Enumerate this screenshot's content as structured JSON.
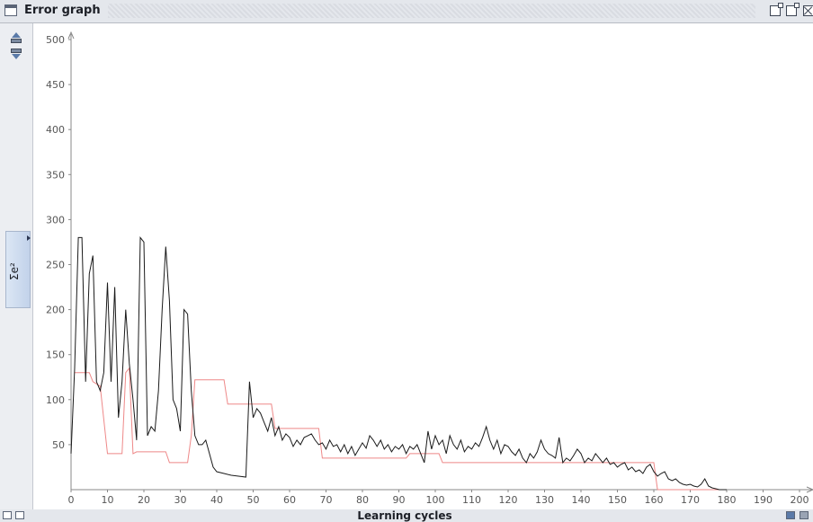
{
  "window": {
    "title": "Error graph"
  },
  "toolbar": {
    "minimize": "minimize",
    "maximize": "maximize",
    "close": "close"
  },
  "y_axis_tab": {
    "label": "Σe²"
  },
  "x_axis": {
    "label": "Learning cycles"
  },
  "chart_data": {
    "type": "line",
    "xlabel": "Learning cycles",
    "ylabel": "Σe²",
    "xlim": [
      0,
      200
    ],
    "ylim": [
      0,
      500
    ],
    "x_ticks": [
      "0",
      "10",
      "20",
      "30",
      "40",
      "50",
      "60",
      "70",
      "80",
      "90",
      "100",
      "110",
      "120",
      "130",
      "140",
      "150",
      "160",
      "170",
      "180",
      "190",
      "200"
    ],
    "y_ticks": [
      "50",
      "100",
      "150",
      "200",
      "250",
      "300",
      "350",
      "400",
      "450",
      "500"
    ],
    "grid": false,
    "series": [
      {
        "color": "#1a1a1a",
        "points": [
          [
            0,
            40
          ],
          [
            1,
            135
          ],
          [
            2,
            280
          ],
          [
            3,
            280
          ],
          [
            4,
            120
          ],
          [
            5,
            240
          ],
          [
            6,
            260
          ],
          [
            7,
            120
          ],
          [
            8,
            110
          ],
          [
            9,
            130
          ],
          [
            10,
            230
          ],
          [
            11,
            120
          ],
          [
            12,
            225
          ],
          [
            13,
            80
          ],
          [
            14,
            120
          ],
          [
            15,
            200
          ],
          [
            16,
            140
          ],
          [
            17,
            100
          ],
          [
            18,
            55
          ],
          [
            19,
            280
          ],
          [
            20,
            275
          ],
          [
            21,
            60
          ],
          [
            22,
            70
          ],
          [
            23,
            65
          ],
          [
            24,
            110
          ],
          [
            25,
            200
          ],
          [
            26,
            270
          ],
          [
            27,
            210
          ],
          [
            28,
            100
          ],
          [
            29,
            90
          ],
          [
            30,
            65
          ],
          [
            31,
            200
          ],
          [
            32,
            195
          ],
          [
            33,
            110
          ],
          [
            34,
            60
          ],
          [
            35,
            50
          ],
          [
            36,
            50
          ],
          [
            37,
            55
          ],
          [
            38,
            40
          ],
          [
            39,
            25
          ],
          [
            40,
            20
          ],
          [
            42,
            18
          ],
          [
            44,
            16
          ],
          [
            46,
            15
          ],
          [
            48,
            14
          ],
          [
            49,
            120
          ],
          [
            50,
            80
          ],
          [
            51,
            90
          ],
          [
            52,
            85
          ],
          [
            53,
            75
          ],
          [
            54,
            65
          ],
          [
            55,
            80
          ],
          [
            56,
            60
          ],
          [
            57,
            70
          ],
          [
            58,
            55
          ],
          [
            59,
            62
          ],
          [
            60,
            58
          ],
          [
            61,
            48
          ],
          [
            62,
            55
          ],
          [
            63,
            50
          ],
          [
            64,
            58
          ],
          [
            65,
            60
          ],
          [
            66,
            62
          ],
          [
            67,
            55
          ],
          [
            68,
            50
          ],
          [
            69,
            52
          ],
          [
            70,
            45
          ],
          [
            71,
            55
          ],
          [
            72,
            48
          ],
          [
            73,
            50
          ],
          [
            74,
            42
          ],
          [
            75,
            50
          ],
          [
            76,
            40
          ],
          [
            77,
            48
          ],
          [
            78,
            38
          ],
          [
            79,
            45
          ],
          [
            80,
            52
          ],
          [
            81,
            46
          ],
          [
            82,
            60
          ],
          [
            83,
            55
          ],
          [
            84,
            48
          ],
          [
            85,
            55
          ],
          [
            86,
            45
          ],
          [
            87,
            50
          ],
          [
            88,
            42
          ],
          [
            89,
            48
          ],
          [
            90,
            45
          ],
          [
            91,
            50
          ],
          [
            92,
            40
          ],
          [
            93,
            48
          ],
          [
            94,
            45
          ],
          [
            95,
            50
          ],
          [
            96,
            40
          ],
          [
            97,
            30
          ],
          [
            98,
            65
          ],
          [
            99,
            45
          ],
          [
            100,
            60
          ],
          [
            101,
            50
          ],
          [
            102,
            55
          ],
          [
            103,
            40
          ],
          [
            104,
            60
          ],
          [
            105,
            50
          ],
          [
            106,
            45
          ],
          [
            107,
            55
          ],
          [
            108,
            42
          ],
          [
            109,
            48
          ],
          [
            110,
            45
          ],
          [
            111,
            52
          ],
          [
            112,
            48
          ],
          [
            113,
            58
          ],
          [
            114,
            70
          ],
          [
            115,
            55
          ],
          [
            116,
            45
          ],
          [
            117,
            55
          ],
          [
            118,
            40
          ],
          [
            119,
            50
          ],
          [
            120,
            48
          ],
          [
            121,
            42
          ],
          [
            122,
            38
          ],
          [
            123,
            45
          ],
          [
            124,
            35
          ],
          [
            125,
            30
          ],
          [
            126,
            40
          ],
          [
            127,
            35
          ],
          [
            128,
            42
          ],
          [
            129,
            55
          ],
          [
            130,
            45
          ],
          [
            131,
            40
          ],
          [
            132,
            38
          ],
          [
            133,
            35
          ],
          [
            134,
            58
          ],
          [
            135,
            30
          ],
          [
            136,
            35
          ],
          [
            137,
            32
          ],
          [
            138,
            38
          ],
          [
            139,
            45
          ],
          [
            140,
            40
          ],
          [
            141,
            30
          ],
          [
            142,
            35
          ],
          [
            143,
            32
          ],
          [
            144,
            40
          ],
          [
            145,
            35
          ],
          [
            146,
            30
          ],
          [
            147,
            35
          ],
          [
            148,
            28
          ],
          [
            149,
            30
          ],
          [
            150,
            25
          ],
          [
            151,
            28
          ],
          [
            152,
            30
          ],
          [
            153,
            22
          ],
          [
            154,
            25
          ],
          [
            155,
            20
          ],
          [
            156,
            22
          ],
          [
            157,
            18
          ],
          [
            158,
            25
          ],
          [
            159,
            28
          ],
          [
            160,
            20
          ],
          [
            161,
            15
          ],
          [
            162,
            18
          ],
          [
            163,
            20
          ],
          [
            164,
            12
          ],
          [
            165,
            10
          ],
          [
            166,
            12
          ],
          [
            167,
            8
          ],
          [
            168,
            6
          ],
          [
            169,
            5
          ],
          [
            170,
            6
          ],
          [
            171,
            4
          ],
          [
            172,
            3
          ],
          [
            173,
            6
          ],
          [
            174,
            12
          ],
          [
            175,
            4
          ],
          [
            176,
            2
          ],
          [
            177,
            1
          ],
          [
            178,
            0
          ],
          [
            180,
            0
          ]
        ]
      },
      {
        "color": "#ee8888",
        "points": [
          [
            1,
            130
          ],
          [
            5,
            130
          ],
          [
            6,
            120
          ],
          [
            8,
            115
          ],
          [
            10,
            40
          ],
          [
            14,
            40
          ],
          [
            15,
            130
          ],
          [
            16,
            135
          ],
          [
            17,
            40
          ],
          [
            18,
            42
          ],
          [
            26,
            42
          ],
          [
            27,
            30
          ],
          [
            32,
            30
          ],
          [
            33,
            60
          ],
          [
            34,
            122
          ],
          [
            42,
            122
          ],
          [
            43,
            95
          ],
          [
            55,
            95
          ],
          [
            56,
            68
          ],
          [
            68,
            68
          ],
          [
            69,
            35
          ],
          [
            92,
            35
          ],
          [
            93,
            40
          ],
          [
            101,
            40
          ],
          [
            102,
            30
          ],
          [
            160,
            30
          ],
          [
            161,
            0
          ],
          [
            180,
            0
          ]
        ]
      }
    ]
  }
}
